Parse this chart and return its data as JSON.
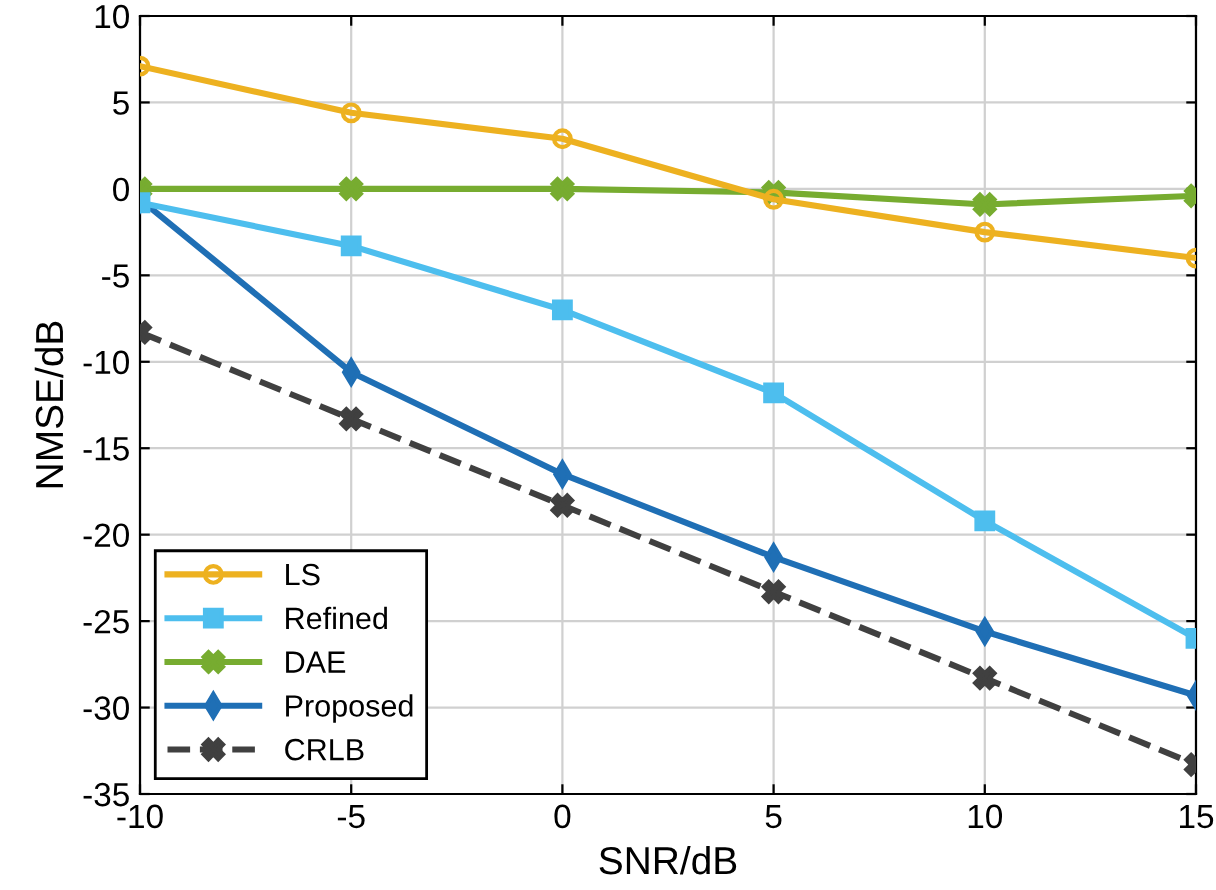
{
  "chart_data": {
    "type": "line",
    "xlabel": "SNR/dB",
    "ylabel": "NMSE/dB",
    "x": [
      -10,
      -5,
      0,
      5,
      10,
      15
    ],
    "series": [
      {
        "name": "LS",
        "color": "#edb120",
        "marker": "circle",
        "line_style": "solid",
        "values": [
          7.1,
          4.4,
          2.9,
          -0.6,
          -2.5,
          -4.0
        ]
      },
      {
        "name": "Refined",
        "color": "#4dbeee",
        "marker": "square",
        "line_style": "solid",
        "values": [
          -0.8,
          -3.3,
          -7.0,
          -11.8,
          -19.2,
          -26.0
        ]
      },
      {
        "name": "DAE",
        "color": "#77ac30",
        "marker": "cross",
        "line_style": "solid",
        "values": [
          0,
          0,
          0,
          -0.2,
          -0.9,
          -0.4
        ]
      },
      {
        "name": "Proposed",
        "color": "#1f6fb5",
        "marker": "diamond",
        "line_style": "solid",
        "values": [
          -0.6,
          -10.6,
          -16.5,
          -21.3,
          -25.6,
          -29.3
        ]
      },
      {
        "name": "CRLB",
        "color": "#404040",
        "marker": "cross",
        "line_style": "dashed",
        "values": [
          -8.3,
          -13.3,
          -18.3,
          -23.3,
          -28.3,
          -33.3
        ]
      }
    ],
    "xlim": [
      -10,
      15
    ],
    "xticks": [
      -10,
      -5,
      0,
      5,
      10,
      15
    ],
    "ylim": [
      -35,
      10
    ],
    "yticks": [
      -35,
      -30,
      -25,
      -20,
      -15,
      -10,
      -5,
      0,
      5,
      10
    ],
    "grid": true,
    "legend": "bottom left"
  }
}
